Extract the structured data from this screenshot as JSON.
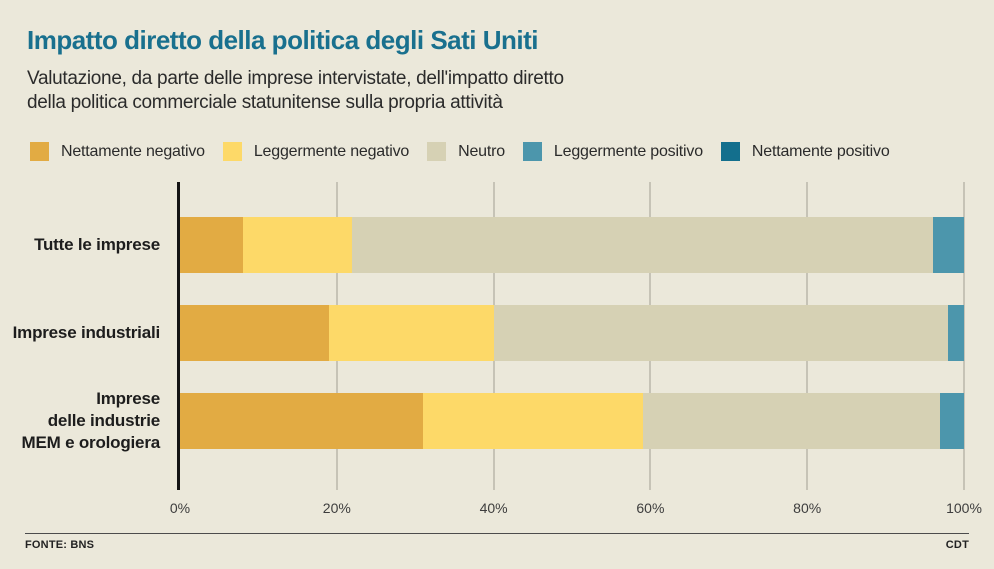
{
  "title": "Impatto diretto della politica degli Sati Uniti",
  "subtitle_line1": "Valutazione, da parte delle imprese intervistate, dell'impatto diretto",
  "subtitle_line2": "della politica commerciale statunitense sulla propria attività",
  "footer": {
    "source": "FONTE: BNS",
    "credit": "CDT"
  },
  "colors": {
    "background": "#ebe8da",
    "title": "#19708e",
    "text": "#2b2b2b",
    "gridline": "#c6c3b6",
    "axis": "#141414"
  },
  "chart_data": {
    "type": "bar",
    "stacked": true,
    "orientation": "horizontal",
    "unit": "%",
    "grid": true,
    "legend_position": "top",
    "xlim": [
      0,
      100
    ],
    "x_ticks": [
      {
        "label": "0%",
        "value": 0
      },
      {
        "label": "20%",
        "value": 20
      },
      {
        "label": "40%",
        "value": 40
      },
      {
        "label": "60%",
        "value": 60
      },
      {
        "label": "80%",
        "value": 80
      },
      {
        "label": "100%",
        "value": 100
      }
    ],
    "categories": [
      "Tutte le imprese",
      "Imprese industriali",
      "Imprese delle industrie MEM e orologiera"
    ],
    "category_label_lines": [
      [
        "Tutte le imprese"
      ],
      [
        "Imprese industriali"
      ],
      [
        "Imprese",
        "delle industrie",
        "MEM e orologiera"
      ]
    ],
    "series": [
      {
        "name": "Nettamente negativo",
        "color": "#e2ab43",
        "values": [
          8,
          19,
          31
        ]
      },
      {
        "name": "Leggermente negativo",
        "color": "#fdd968",
        "values": [
          14,
          21,
          28
        ]
      },
      {
        "name": "Neutro",
        "color": "#d6d1b4",
        "values": [
          74,
          58,
          38
        ]
      },
      {
        "name": "Leggermente positivo",
        "color": "#4c96ac",
        "values": [
          4,
          2,
          3
        ]
      },
      {
        "name": "Nettamente positivo",
        "color": "#136f8d",
        "values": [
          0,
          0,
          0
        ]
      }
    ]
  }
}
